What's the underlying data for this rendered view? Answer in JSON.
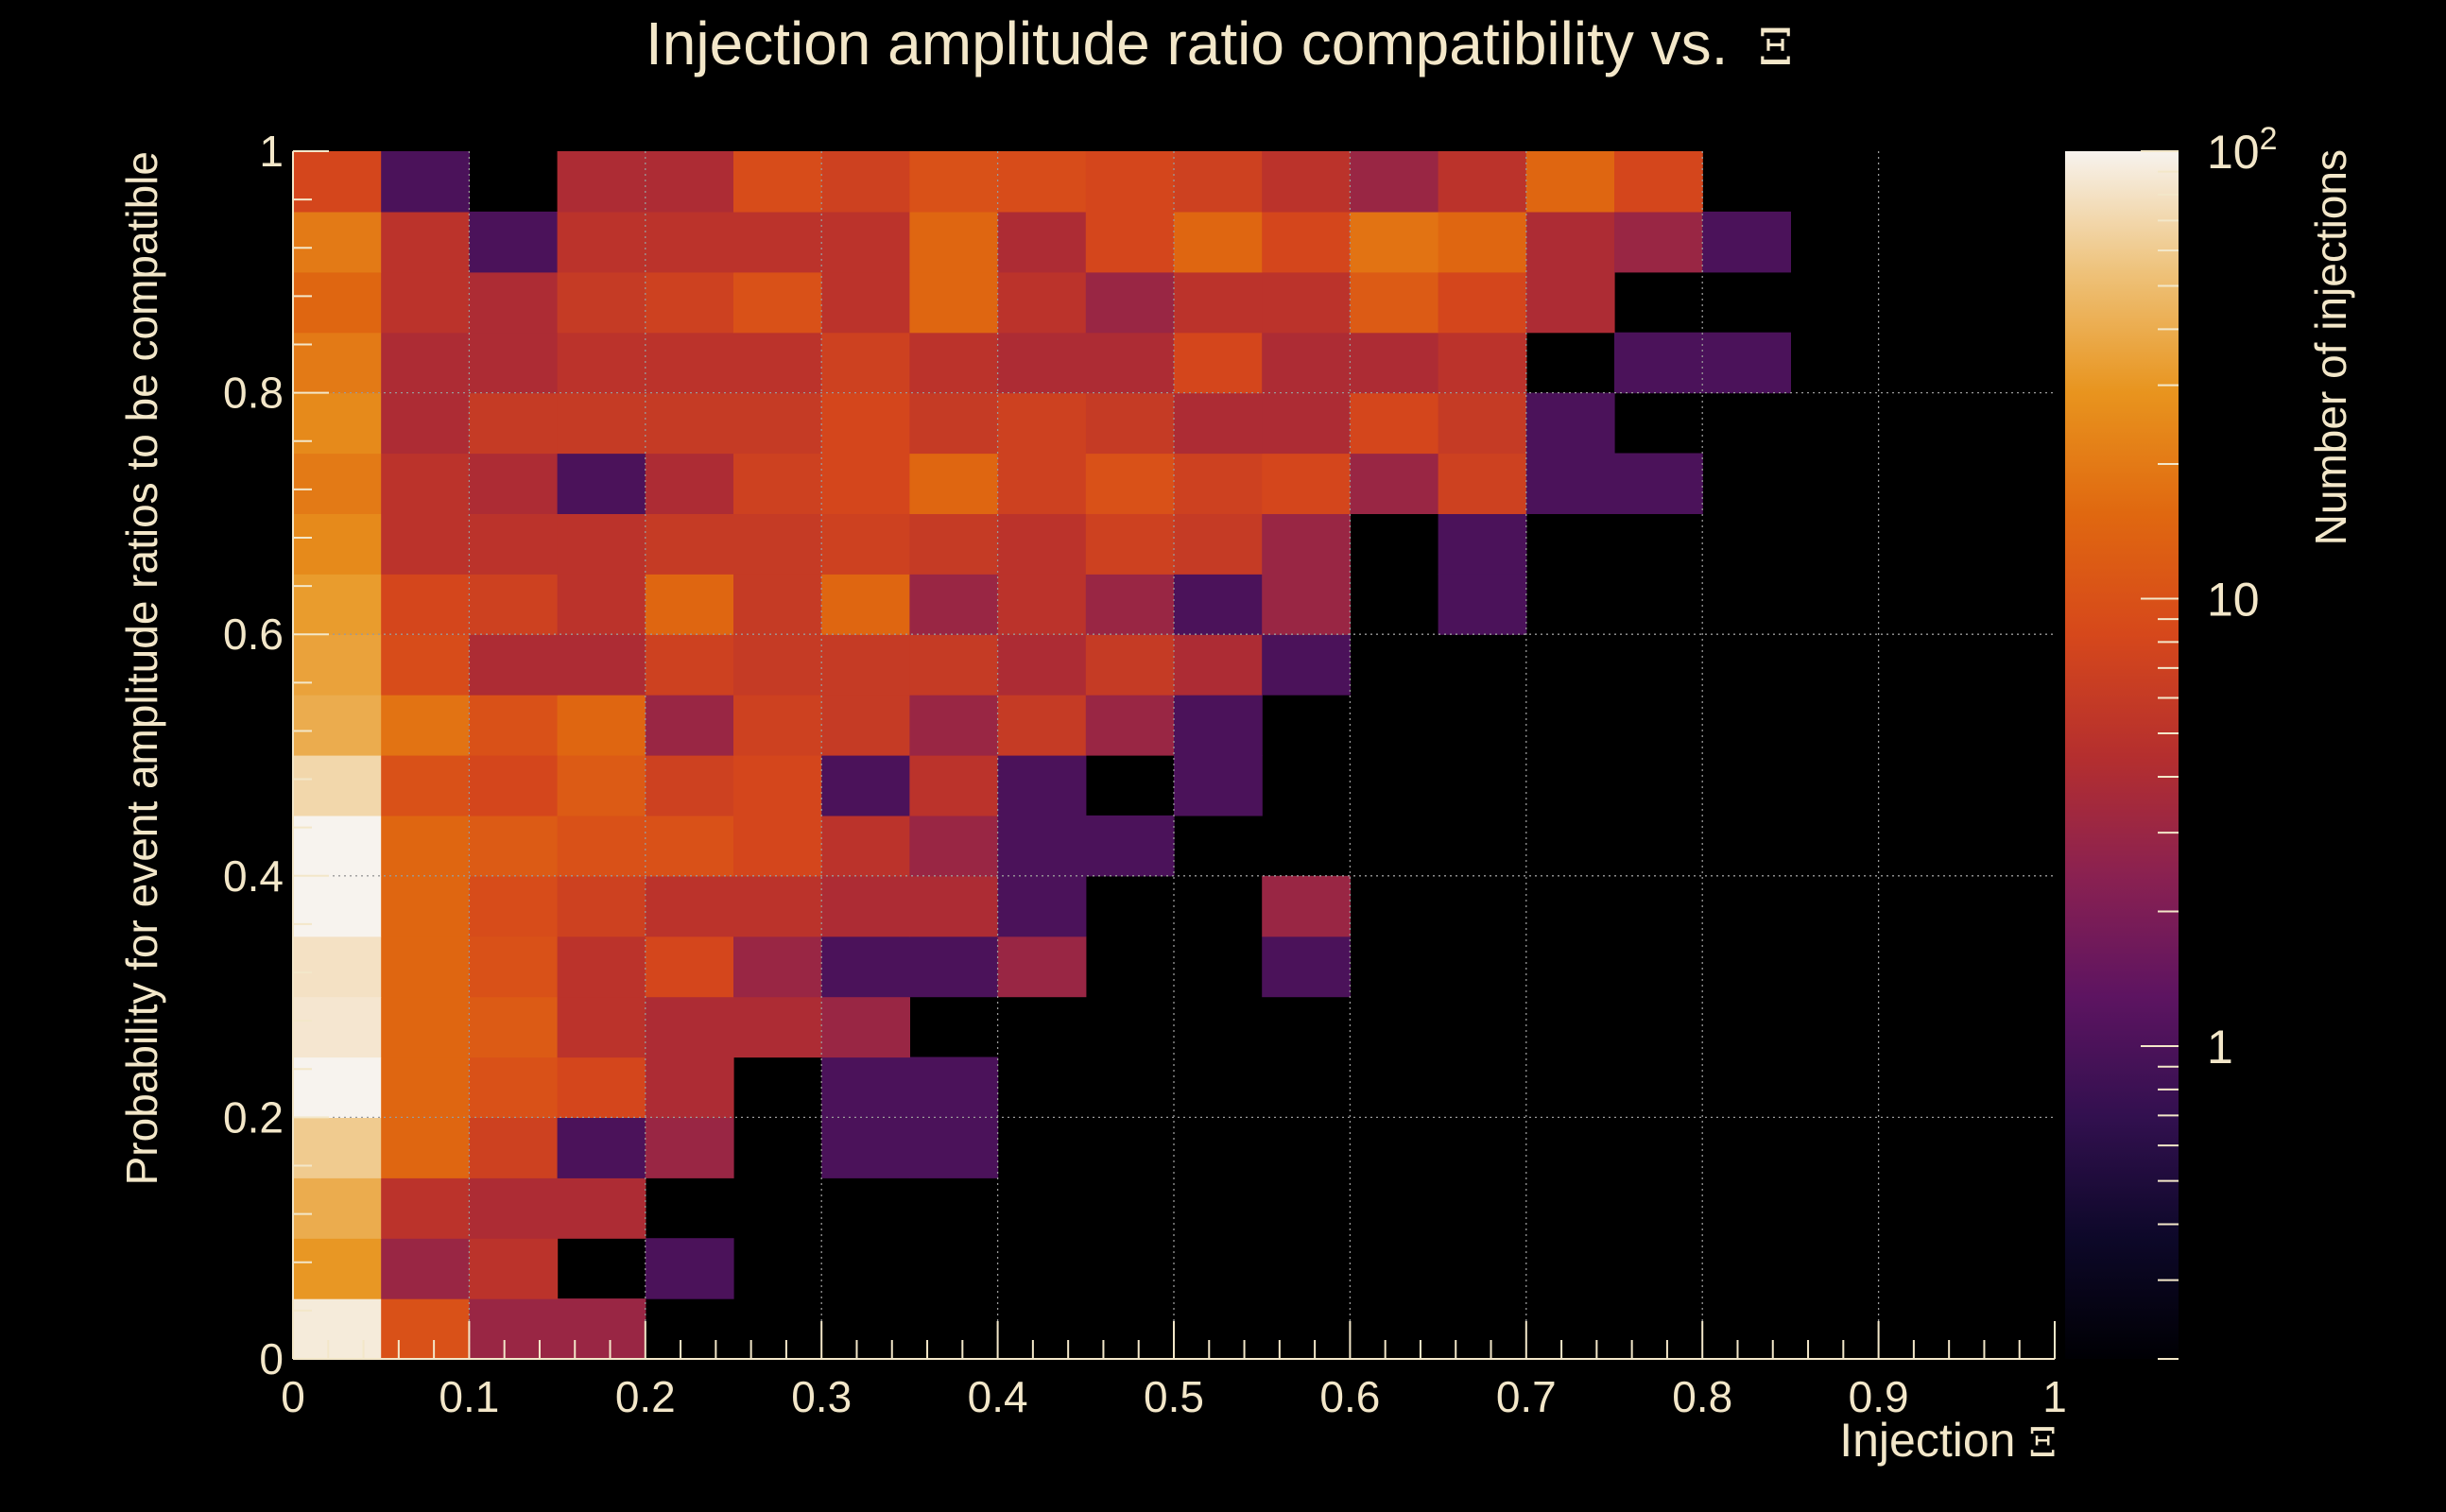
{
  "chart_data": {
    "type": "heatmap",
    "title": "Injection amplitude ratio compatibility vs.",
    "title_symbol": "Ξ",
    "xlabel": "Injection",
    "xlabel_symbol": "Ξ",
    "ylabel": "Probability for event amplitude ratios to be compatible",
    "colorbar_label": "Number of injections",
    "colorbar_scale": "log",
    "colorbar_range": [
      0.2,
      100
    ],
    "colorbar_ticks": [
      {
        "value": 1,
        "label": "1",
        "sup": ""
      },
      {
        "value": 10,
        "label": "10",
        "sup": ""
      },
      {
        "value": 100,
        "label": "10",
        "sup": "2"
      }
    ],
    "xlim": [
      0,
      1
    ],
    "ylim": [
      0,
      1
    ],
    "x_bin_width": 0.05,
    "y_bin_width": 0.05,
    "grid": true,
    "x_ticks": [
      {
        "value": 0,
        "label": "0"
      },
      {
        "value": 0.1,
        "label": "0.1"
      },
      {
        "value": 0.2,
        "label": "0.2"
      },
      {
        "value": 0.3,
        "label": "0.3"
      },
      {
        "value": 0.4,
        "label": "0.4"
      },
      {
        "value": 0.5,
        "label": "0.5"
      },
      {
        "value": 0.6,
        "label": "0.6"
      },
      {
        "value": 0.7,
        "label": "0.7"
      },
      {
        "value": 0.8,
        "label": "0.8"
      },
      {
        "value": 0.9,
        "label": "0.9"
      },
      {
        "value": 1,
        "label": "1"
      }
    ],
    "y_ticks": [
      {
        "value": 0,
        "label": "0"
      },
      {
        "value": 0.2,
        "label": "0.2"
      },
      {
        "value": 0.4,
        "label": "0.4"
      },
      {
        "value": 0.6,
        "label": "0.6"
      },
      {
        "value": 0.8,
        "label": "0.8"
      },
      {
        "value": 1,
        "label": "1"
      }
    ],
    "y_bins_bottom_to_top": [
      [
        90,
        10,
        3,
        3,
        0,
        0,
        0,
        0,
        0,
        0,
        0,
        0,
        0,
        0,
        0,
        0,
        0,
        0,
        0,
        0
      ],
      [
        30,
        3,
        5,
        0,
        1,
        0,
        0,
        0,
        0,
        0,
        0,
        0,
        0,
        0,
        0,
        0,
        0,
        0,
        0,
        0
      ],
      [
        40,
        5,
        4,
        4,
        0,
        0,
        0,
        0,
        0,
        0,
        0,
        0,
        0,
        0,
        0,
        0,
        0,
        0,
        0,
        0
      ],
      [
        60,
        15,
        7,
        1,
        3,
        0,
        1,
        1,
        0,
        0,
        0,
        0,
        0,
        0,
        0,
        0,
        0,
        0,
        0,
        0
      ],
      [
        100,
        15,
        10,
        8,
        4,
        0,
        1,
        1,
        0,
        0,
        0,
        0,
        0,
        0,
        0,
        0,
        0,
        0,
        0,
        0
      ],
      [
        85,
        15,
        12,
        5,
        4,
        4,
        3,
        0,
        0,
        0,
        0,
        0,
        0,
        0,
        0,
        0,
        0,
        0,
        0,
        0
      ],
      [
        80,
        15,
        10,
        5,
        8,
        3,
        1,
        1,
        3,
        0,
        0,
        1,
        0,
        0,
        0,
        0,
        0,
        0,
        0,
        0
      ],
      [
        100,
        15,
        9,
        7,
        5,
        5,
        4,
        4,
        1,
        0,
        0,
        3,
        0,
        0,
        0,
        0,
        0,
        0,
        0,
        0
      ],
      [
        100,
        15,
        12,
        10,
        10,
        8,
        5,
        3,
        1,
        1,
        0,
        0,
        0,
        0,
        0,
        0,
        0,
        0,
        0,
        0
      ],
      [
        70,
        10,
        8,
        12,
        7,
        8,
        1,
        5,
        1,
        0,
        1,
        0,
        0,
        0,
        0,
        0,
        0,
        0,
        0,
        0
      ],
      [
        40,
        18,
        10,
        15,
        3,
        7,
        6,
        3,
        6,
        3,
        1,
        0,
        0,
        0,
        0,
        0,
        0,
        0,
        0,
        0
      ],
      [
        35,
        9,
        4,
        4,
        7,
        6,
        6,
        6,
        4,
        6,
        4,
        1,
        0,
        0,
        0,
        0,
        0,
        0,
        0,
        0
      ],
      [
        32,
        8,
        7,
        5,
        15,
        6,
        15,
        3,
        5,
        3,
        1,
        3,
        0,
        1,
        0,
        0,
        0,
        0,
        0,
        0
      ],
      [
        25,
        5,
        5,
        5,
        6,
        6,
        7,
        6,
        5,
        7,
        6,
        3,
        0,
        1,
        0,
        0,
        0,
        0,
        0,
        0
      ],
      [
        20,
        5,
        4,
        1,
        4,
        7,
        8,
        15,
        7,
        10,
        7,
        8,
        3,
        7,
        1,
        1,
        0,
        0,
        0,
        0
      ],
      [
        25,
        4,
        6,
        6,
        6,
        6,
        8,
        6,
        7,
        6,
        4,
        4,
        8,
        6,
        1,
        0,
        0,
        0,
        0,
        0
      ],
      [
        20,
        4,
        4,
        5,
        5,
        5,
        7,
        5,
        4,
        4,
        8,
        4,
        4,
        5,
        0,
        1,
        1,
        0,
        0,
        0
      ],
      [
        15,
        5,
        4,
        6,
        7,
        10,
        5,
        15,
        5,
        3,
        5,
        5,
        12,
        8,
        4,
        0,
        0,
        0,
        0,
        0
      ],
      [
        20,
        5,
        1,
        5,
        5,
        5,
        5,
        15,
        4,
        8,
        15,
        8,
        18,
        15,
        4,
        3,
        1,
        0,
        0,
        0
      ],
      [
        8,
        1,
        0,
        4,
        4,
        9,
        7,
        10,
        9,
        8,
        7,
        5,
        3,
        5,
        15,
        8,
        0,
        0,
        0,
        0
      ]
    ]
  }
}
